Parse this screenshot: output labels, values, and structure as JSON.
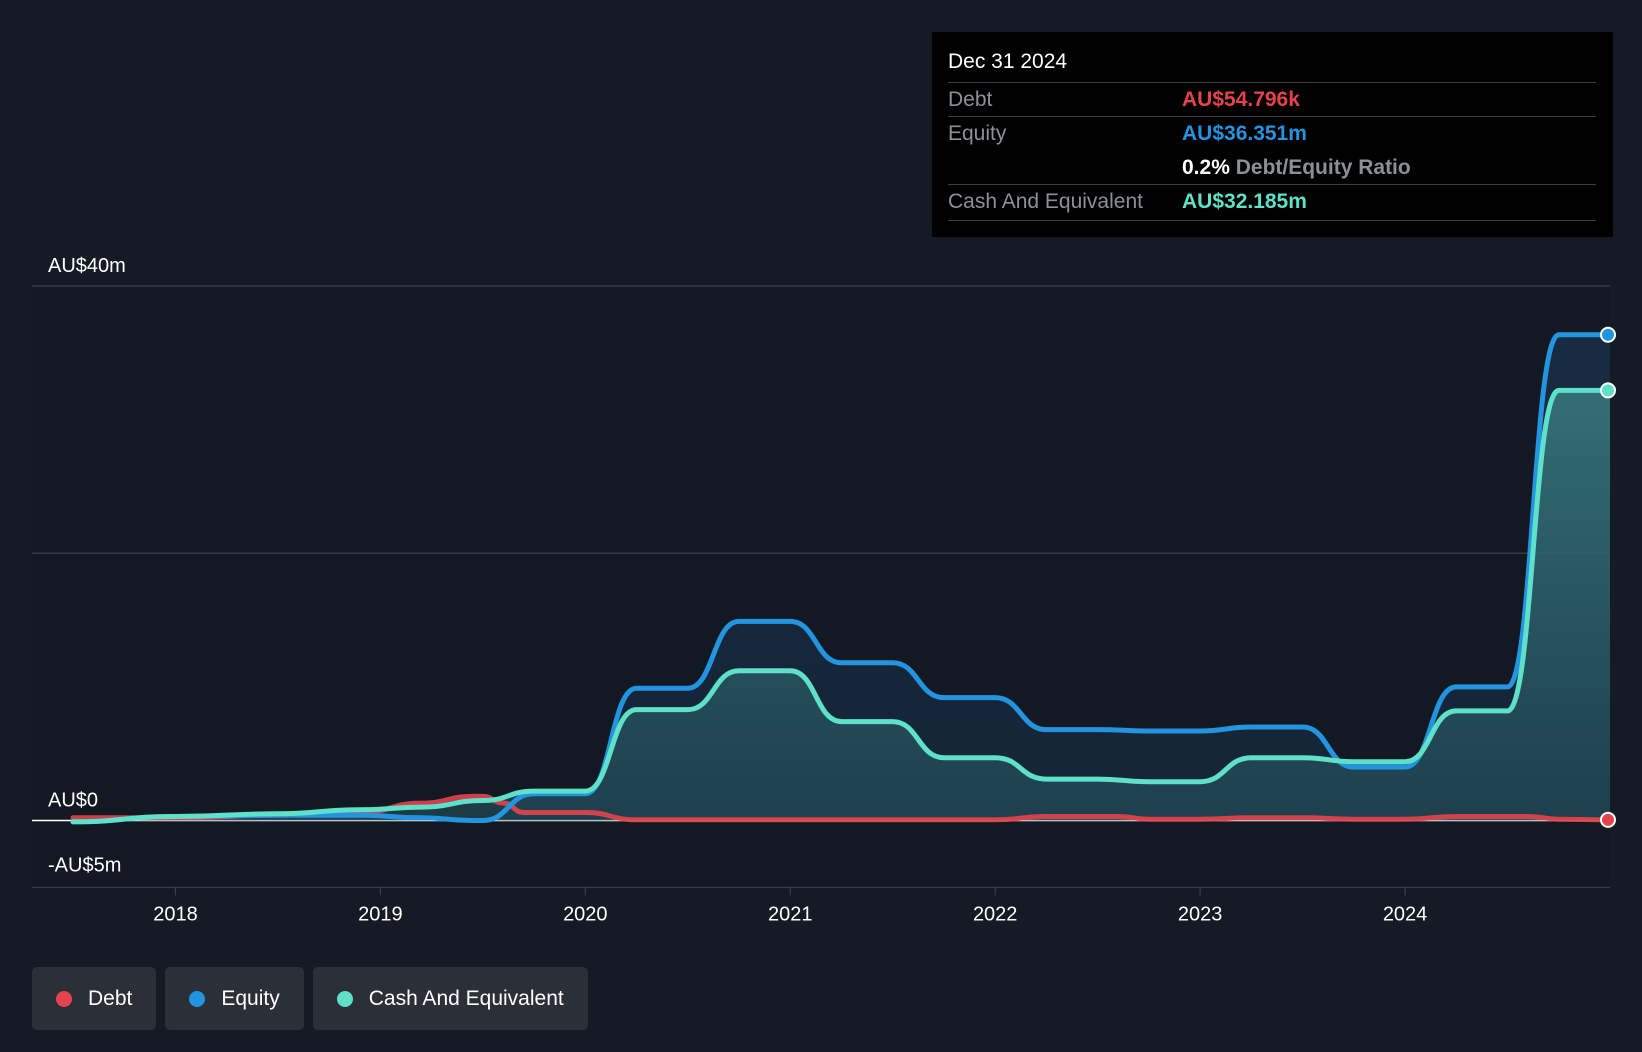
{
  "colors": {
    "background": "#151b24",
    "debt": "#e5434b",
    "equity": "#2394df",
    "cash": "#5fe0c8",
    "gridline": "#3a404a",
    "axis_text": "#ffffff"
  },
  "tooltip": {
    "date": "Dec 31 2024",
    "rows": [
      {
        "label": "Debt",
        "value": "AU$54.796k",
        "color": "#e5434b"
      },
      {
        "label": "Equity",
        "value": "AU$36.351m",
        "color": "#2394df"
      },
      {
        "ratio_value": "0.2%",
        "ratio_label": "Debt/Equity Ratio"
      },
      {
        "label": "Cash And Equivalent",
        "value": "AU$32.185m",
        "color": "#5fe0c8"
      }
    ]
  },
  "legend": [
    {
      "label": "Debt",
      "color": "#e5434b"
    },
    {
      "label": "Equity",
      "color": "#2394df"
    },
    {
      "label": "Cash And Equivalent",
      "color": "#5fe0c8"
    }
  ],
  "chart_data": {
    "type": "area",
    "title": "",
    "xlabel": "",
    "ylabel": "",
    "y_unit": "AU$m",
    "ylim": [
      -5,
      40
    ],
    "xlim": [
      2017.3,
      2025.0
    ],
    "y_ticks": [
      {
        "value": 40,
        "label": "AU$40m"
      },
      {
        "value": 0,
        "label": "AU$0"
      },
      {
        "value": -5,
        "label": "-AU$5m"
      }
    ],
    "y_gridlines": [
      40,
      20,
      0,
      -5
    ],
    "x_ticks": [
      {
        "value": 2018,
        "label": "2018"
      },
      {
        "value": 2019,
        "label": "2019"
      },
      {
        "value": 2020,
        "label": "2020"
      },
      {
        "value": 2021,
        "label": "2021"
      },
      {
        "value": 2022,
        "label": "2022"
      },
      {
        "value": 2023,
        "label": "2023"
      },
      {
        "value": 2024,
        "label": "2024"
      }
    ],
    "legend_position": "bottom-left",
    "series": [
      {
        "name": "Debt",
        "points": [
          [
            2017.5,
            0.2
          ],
          [
            2018.0,
            0.2
          ],
          [
            2018.5,
            0.4
          ],
          [
            2018.9,
            0.6
          ],
          [
            2019.2,
            1.3
          ],
          [
            2019.45,
            1.8
          ],
          [
            2019.5,
            1.8
          ],
          [
            2019.6,
            1.3
          ],
          [
            2019.7,
            0.6
          ],
          [
            2020.0,
            0.6
          ],
          [
            2020.25,
            0.05
          ],
          [
            2021.0,
            0.05
          ],
          [
            2022.0,
            0.05
          ],
          [
            2022.25,
            0.3
          ],
          [
            2022.6,
            0.3
          ],
          [
            2022.75,
            0.1
          ],
          [
            2023.0,
            0.1
          ],
          [
            2023.25,
            0.2
          ],
          [
            2023.5,
            0.2
          ],
          [
            2023.75,
            0.1
          ],
          [
            2024.0,
            0.1
          ],
          [
            2024.25,
            0.3
          ],
          [
            2024.6,
            0.3
          ],
          [
            2024.75,
            0.1
          ],
          [
            2025.0,
            0.05
          ]
        ]
      },
      {
        "name": "Equity",
        "points": [
          [
            2017.5,
            -0.1
          ],
          [
            2018.0,
            0.3
          ],
          [
            2018.5,
            0.4
          ],
          [
            2018.9,
            0.4
          ],
          [
            2019.2,
            0.2
          ],
          [
            2019.45,
            0.0
          ],
          [
            2019.5,
            0.0
          ],
          [
            2019.75,
            2.0
          ],
          [
            2020.0,
            2.0
          ],
          [
            2020.25,
            9.9
          ],
          [
            2020.5,
            9.9
          ],
          [
            2020.75,
            14.9
          ],
          [
            2021.0,
            14.9
          ],
          [
            2021.25,
            11.8
          ],
          [
            2021.5,
            11.8
          ],
          [
            2021.75,
            9.2
          ],
          [
            2022.0,
            9.2
          ],
          [
            2022.25,
            6.8
          ],
          [
            2022.5,
            6.8
          ],
          [
            2022.75,
            6.7
          ],
          [
            2023.0,
            6.7
          ],
          [
            2023.25,
            7.0
          ],
          [
            2023.5,
            7.0
          ],
          [
            2023.75,
            4.0
          ],
          [
            2024.0,
            4.0
          ],
          [
            2024.25,
            10.0
          ],
          [
            2024.5,
            10.0
          ],
          [
            2024.75,
            36.351
          ],
          [
            2025.0,
            36.351
          ]
        ]
      },
      {
        "name": "Cash And Equivalent",
        "points": [
          [
            2017.5,
            -0.1
          ],
          [
            2018.0,
            0.3
          ],
          [
            2018.5,
            0.5
          ],
          [
            2018.9,
            0.8
          ],
          [
            2019.2,
            1.0
          ],
          [
            2019.5,
            1.5
          ],
          [
            2019.75,
            2.2
          ],
          [
            2020.0,
            2.2
          ],
          [
            2020.25,
            8.3
          ],
          [
            2020.5,
            8.3
          ],
          [
            2020.75,
            11.2
          ],
          [
            2021.0,
            11.2
          ],
          [
            2021.25,
            7.4
          ],
          [
            2021.5,
            7.4
          ],
          [
            2021.75,
            4.7
          ],
          [
            2022.0,
            4.7
          ],
          [
            2022.25,
            3.1
          ],
          [
            2022.5,
            3.1
          ],
          [
            2022.75,
            2.9
          ],
          [
            2023.0,
            2.9
          ],
          [
            2023.25,
            4.7
          ],
          [
            2023.5,
            4.7
          ],
          [
            2023.75,
            4.4
          ],
          [
            2024.0,
            4.4
          ],
          [
            2024.25,
            8.2
          ],
          [
            2024.5,
            8.2
          ],
          [
            2024.75,
            32.185
          ],
          [
            2025.0,
            32.185
          ]
        ]
      }
    ]
  }
}
